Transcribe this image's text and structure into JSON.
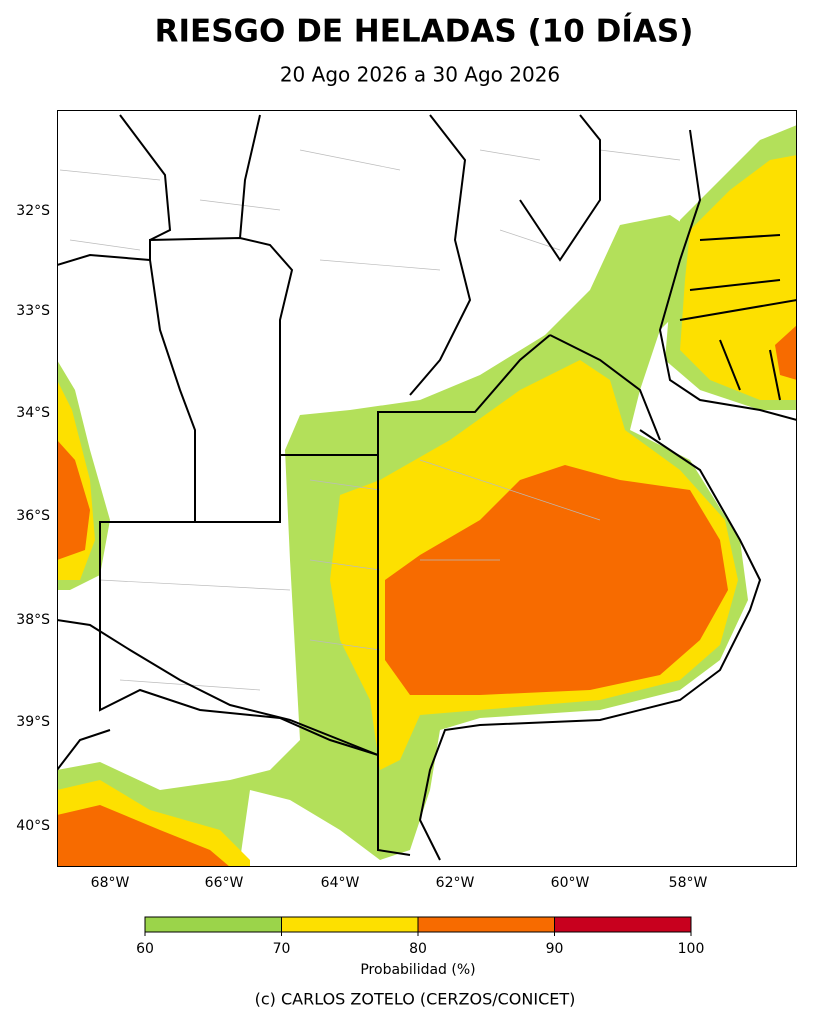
{
  "header": {
    "title": "RIESGO DE HELADAS (10 DÍAS)",
    "subtitle": "20 Ago 2026 a 30 Ago 2026"
  },
  "map": {
    "lat_labels": [
      "32°S",
      "33°S",
      "34°S",
      "36°S",
      "38°S",
      "39°S",
      "40°S"
    ],
    "lon_labels": [
      "68°W",
      "66°W",
      "64°W",
      "62°W",
      "60°W",
      "58°W"
    ]
  },
  "colorbar": {
    "label": "Probabilidad (%)",
    "ticks": [
      60,
      70,
      80,
      90,
      100
    ],
    "colors": [
      "#9bd44a",
      "#fde000",
      "#f76b00",
      "#c8001e"
    ]
  },
  "credit": "(c) CARLOS ZOTELO (CERZOS/CONICET)"
}
